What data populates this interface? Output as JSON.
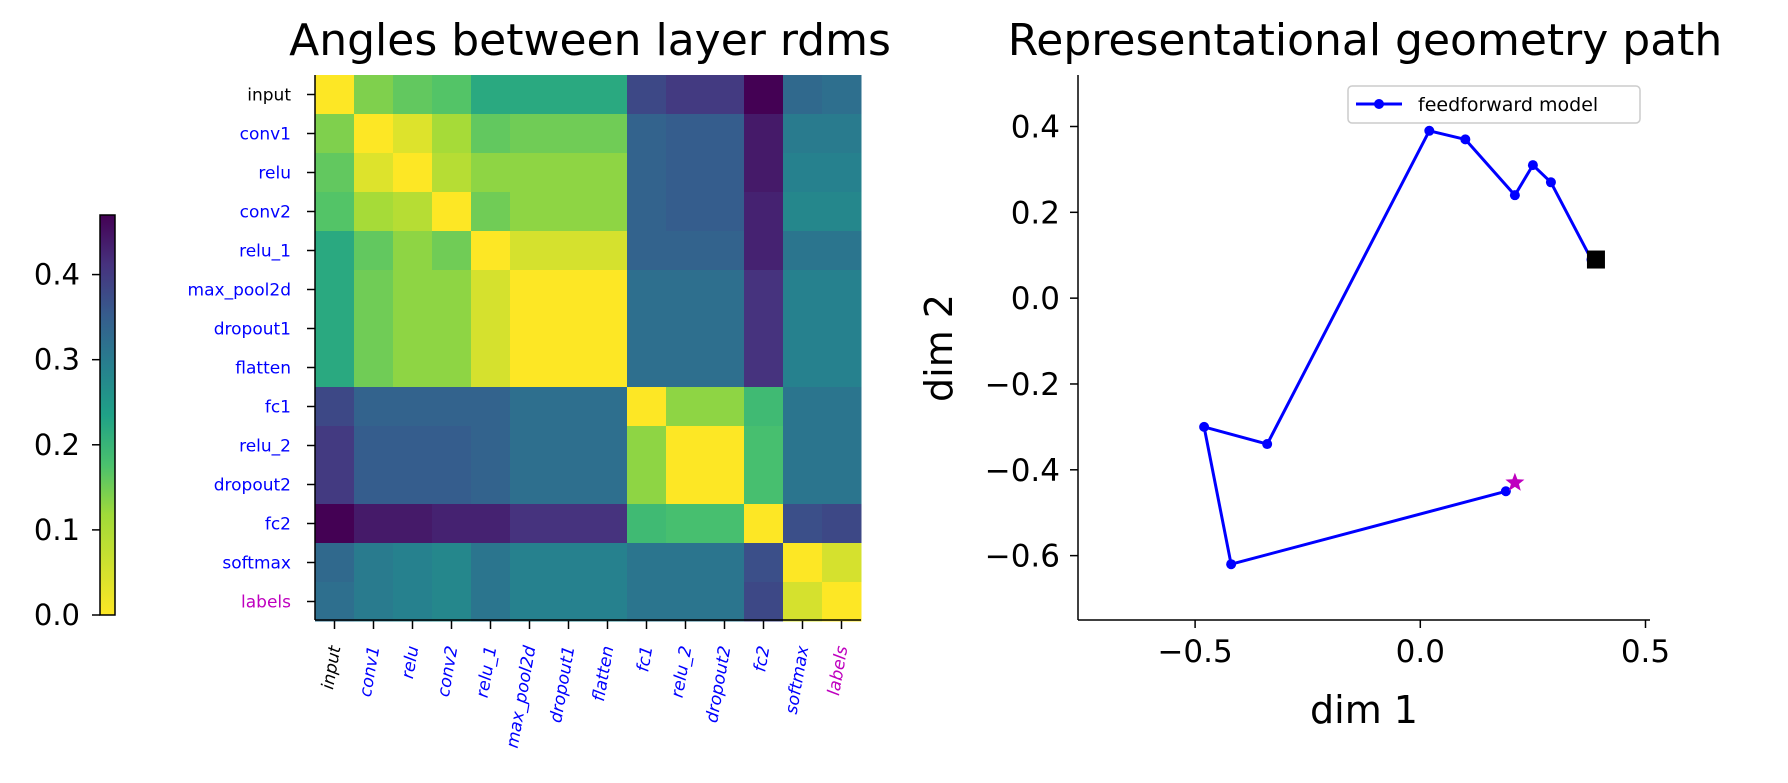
{
  "chart_data": [
    {
      "type": "heatmap",
      "title": "Angles between layer rdms",
      "row_labels": [
        "input",
        "conv1",
        "relu",
        "conv2",
        "relu_1",
        "max_pool2d",
        "dropout1",
        "flatten",
        "fc1",
        "relu_2",
        "dropout2",
        "fc2",
        "softmax",
        "labels"
      ],
      "col_labels": [
        "input",
        "conv1",
        "relu",
        "conv2",
        "relu_1",
        "max_pool2d",
        "dropout1",
        "flatten",
        "fc1",
        "relu_2",
        "dropout2",
        "fc2",
        "softmax",
        "labels"
      ],
      "label_colors": [
        "#000000",
        "#0000ff",
        "#0000ff",
        "#0000ff",
        "#0000ff",
        "#0000ff",
        "#0000ff",
        "#0000ff",
        "#0000ff",
        "#0000ff",
        "#0000ff",
        "#0000ff",
        "#0000ff",
        "#bf00bf"
      ],
      "colormap": "viridis_r",
      "colorbar": {
        "min": 0.0,
        "max": 0.47,
        "ticks": [
          0.0,
          0.1,
          0.2,
          0.3,
          0.4
        ],
        "tick_labels": [
          "0.0",
          "0.1",
          "0.2",
          "0.3",
          "0.4"
        ],
        "placement": "left"
      },
      "matrix": [
        [
          0.0,
          0.14,
          0.16,
          0.17,
          0.22,
          0.22,
          0.22,
          0.22,
          0.38,
          0.4,
          0.4,
          0.47,
          0.33,
          0.32
        ],
        [
          0.14,
          0.0,
          0.04,
          0.11,
          0.16,
          0.15,
          0.15,
          0.15,
          0.34,
          0.35,
          0.35,
          0.44,
          0.3,
          0.3
        ],
        [
          0.16,
          0.04,
          0.0,
          0.09,
          0.13,
          0.13,
          0.13,
          0.13,
          0.34,
          0.35,
          0.35,
          0.44,
          0.29,
          0.29
        ],
        [
          0.17,
          0.11,
          0.09,
          0.0,
          0.15,
          0.13,
          0.13,
          0.13,
          0.34,
          0.35,
          0.35,
          0.43,
          0.28,
          0.28
        ],
        [
          0.22,
          0.16,
          0.13,
          0.15,
          0.0,
          0.05,
          0.05,
          0.05,
          0.34,
          0.34,
          0.34,
          0.43,
          0.31,
          0.31
        ],
        [
          0.22,
          0.15,
          0.13,
          0.13,
          0.05,
          0.0,
          0.0,
          0.0,
          0.32,
          0.32,
          0.32,
          0.41,
          0.29,
          0.29
        ],
        [
          0.22,
          0.15,
          0.13,
          0.13,
          0.05,
          0.0,
          0.0,
          0.0,
          0.32,
          0.32,
          0.32,
          0.41,
          0.29,
          0.29
        ],
        [
          0.22,
          0.15,
          0.13,
          0.13,
          0.05,
          0.0,
          0.0,
          0.0,
          0.32,
          0.32,
          0.32,
          0.41,
          0.29,
          0.29
        ],
        [
          0.38,
          0.34,
          0.34,
          0.34,
          0.34,
          0.32,
          0.32,
          0.32,
          0.0,
          0.13,
          0.13,
          0.19,
          0.31,
          0.31
        ],
        [
          0.4,
          0.35,
          0.35,
          0.35,
          0.34,
          0.32,
          0.32,
          0.32,
          0.13,
          0.0,
          0.0,
          0.18,
          0.31,
          0.31
        ],
        [
          0.4,
          0.35,
          0.35,
          0.35,
          0.34,
          0.32,
          0.32,
          0.32,
          0.13,
          0.0,
          0.0,
          0.18,
          0.31,
          0.31
        ],
        [
          0.47,
          0.44,
          0.44,
          0.43,
          0.43,
          0.41,
          0.41,
          0.41,
          0.19,
          0.18,
          0.18,
          0.0,
          0.37,
          0.38
        ],
        [
          0.33,
          0.3,
          0.29,
          0.28,
          0.31,
          0.29,
          0.29,
          0.29,
          0.31,
          0.31,
          0.31,
          0.37,
          0.0,
          0.05
        ],
        [
          0.32,
          0.3,
          0.29,
          0.28,
          0.31,
          0.29,
          0.29,
          0.29,
          0.31,
          0.31,
          0.31,
          0.38,
          0.05,
          0.0
        ]
      ]
    },
    {
      "type": "line",
      "title": "Representational geometry path",
      "xlabel": "dim 1",
      "ylabel": "dim 2",
      "xlim": [
        -0.76,
        0.51
      ],
      "ylim": [
        -0.75,
        0.52
      ],
      "x_ticks": [
        -0.5,
        0.0,
        0.5
      ],
      "x_tick_labels": [
        "−0.5",
        "0.0",
        "0.5"
      ],
      "y_ticks": [
        -0.6,
        -0.4,
        -0.2,
        0.0,
        0.2,
        0.4
      ],
      "y_tick_labels": [
        "−0.6",
        "−0.4",
        "−0.2",
        "0.0",
        "0.2",
        "0.4"
      ],
      "legend": "top-right",
      "series": [
        {
          "name": "feedforward model",
          "color": "#0000ff",
          "x": [
            0.19,
            -0.42,
            -0.48,
            -0.34,
            0.02,
            0.1,
            0.21,
            0.25,
            0.29,
            0.38
          ],
          "y": [
            -0.45,
            -0.62,
            -0.3,
            -0.34,
            0.39,
            0.37,
            0.24,
            0.31,
            0.27,
            0.09
          ]
        }
      ],
      "markers": [
        {
          "name": "start-star",
          "shape": "star",
          "color": "#bf00bf",
          "x": 0.21,
          "y": -0.43
        },
        {
          "name": "end-square",
          "shape": "square",
          "color": "#000000",
          "x": 0.39,
          "y": 0.09
        }
      ]
    }
  ]
}
